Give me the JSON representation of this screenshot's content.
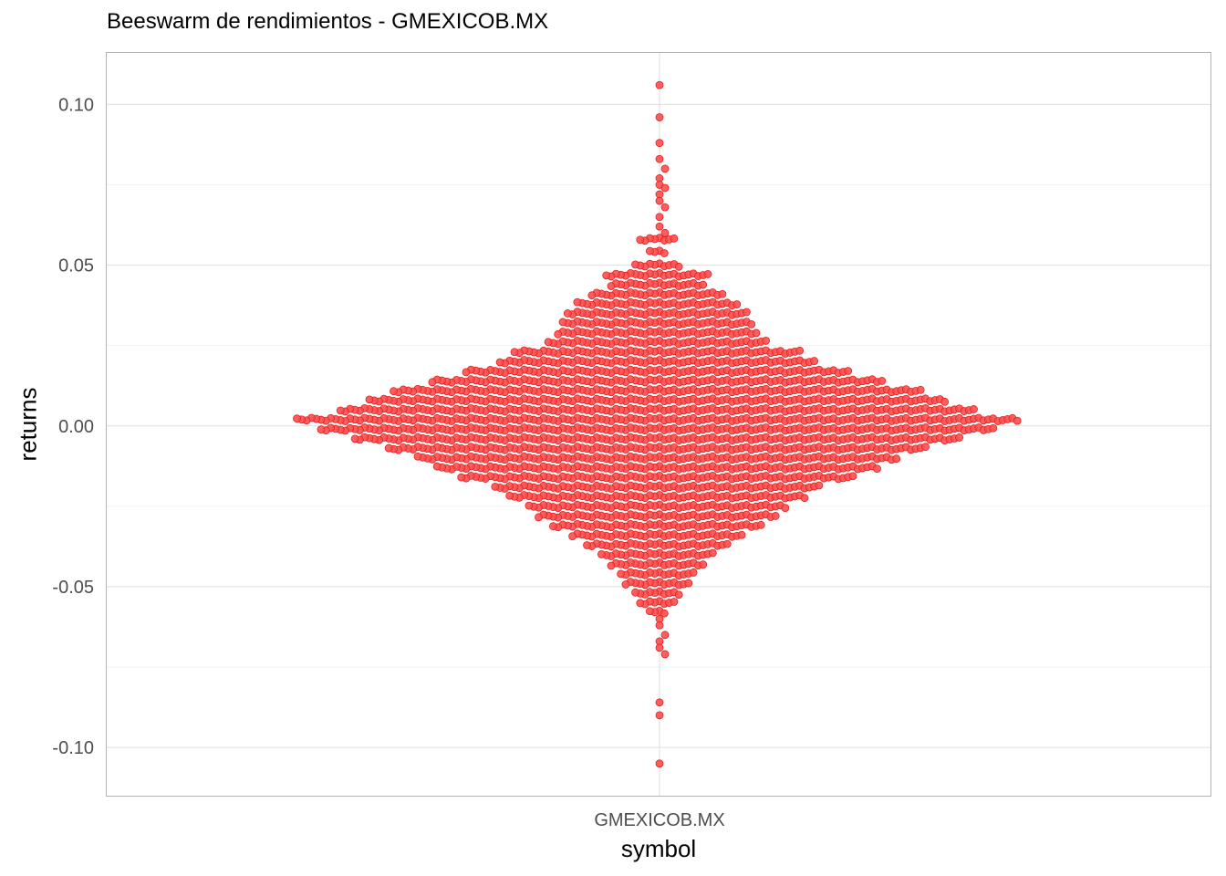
{
  "chart_data": {
    "type": "beeswarm",
    "title": "Beeswarm de rendimientos - GMEXICOB.MX",
    "xlabel": "symbol",
    "ylabel": "returns",
    "categories": [
      "GMEXICOB.MX"
    ],
    "ylim": [
      -0.115,
      0.116
    ],
    "y_ticks": [
      0.1,
      0.05,
      0.0,
      -0.05,
      -0.1
    ],
    "y_tick_labels": [
      "0.10",
      "0.05",
      "0.00",
      "-0.05",
      "-0.10"
    ],
    "grid": true,
    "legend": "none",
    "point_color": "#ff4d4d",
    "point_edge_color": "#e02020",
    "series": [
      {
        "category": "GMEXICOB.MX",
        "outlier_values": [
          0.106,
          0.096,
          0.088,
          0.083,
          0.08,
          0.077,
          0.075,
          0.074,
          0.072,
          0.07,
          0.068,
          0.065,
          0.062,
          0.06,
          -0.06,
          -0.062,
          -0.065,
          -0.067,
          -0.069,
          -0.071,
          -0.086,
          -0.09,
          -0.105
        ],
        "distribution_bins": [
          {
            "y": 0.058,
            "count": 8
          },
          {
            "y": 0.054,
            "count": 4
          },
          {
            "y": 0.05,
            "count": 10
          },
          {
            "y": 0.047,
            "count": 22
          },
          {
            "y": 0.044,
            "count": 20
          },
          {
            "y": 0.041,
            "count": 28
          },
          {
            "y": 0.038,
            "count": 34
          },
          {
            "y": 0.035,
            "count": 38
          },
          {
            "y": 0.032,
            "count": 40
          },
          {
            "y": 0.029,
            "count": 42
          },
          {
            "y": 0.026,
            "count": 46
          },
          {
            "y": 0.023,
            "count": 60
          },
          {
            "y": 0.02,
            "count": 66
          },
          {
            "y": 0.017,
            "count": 80
          },
          {
            "y": 0.014,
            "count": 94
          },
          {
            "y": 0.011,
            "count": 110
          },
          {
            "y": 0.008,
            "count": 120
          },
          {
            "y": 0.005,
            "count": 132
          },
          {
            "y": 0.002,
            "count": 150
          },
          {
            "y": -0.001,
            "count": 140
          },
          {
            "y": -0.004,
            "count": 126
          },
          {
            "y": -0.007,
            "count": 112
          },
          {
            "y": -0.01,
            "count": 100
          },
          {
            "y": -0.013,
            "count": 92
          },
          {
            "y": -0.016,
            "count": 82
          },
          {
            "y": -0.019,
            "count": 68
          },
          {
            "y": -0.022,
            "count": 62
          },
          {
            "y": -0.025,
            "count": 54
          },
          {
            "y": -0.028,
            "count": 50
          },
          {
            "y": -0.031,
            "count": 44
          },
          {
            "y": -0.034,
            "count": 36
          },
          {
            "y": -0.037,
            "count": 30
          },
          {
            "y": -0.04,
            "count": 24
          },
          {
            "y": -0.043,
            "count": 20
          },
          {
            "y": -0.046,
            "count": 16
          },
          {
            "y": -0.049,
            "count": 14
          },
          {
            "y": -0.052,
            "count": 10
          },
          {
            "y": -0.055,
            "count": 8
          },
          {
            "y": -0.058,
            "count": 4
          }
        ]
      }
    ]
  }
}
